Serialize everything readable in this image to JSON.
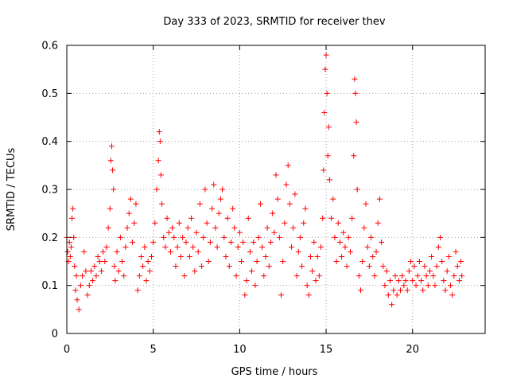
{
  "chart_data": {
    "type": "scatter",
    "title": "Day 333 of 2023, SRMTID for receiver thev",
    "xlabel": "GPS time / hours",
    "ylabel": "SRMTID / TECUs",
    "xlim": [
      0,
      24.2
    ],
    "ylim": [
      0,
      0.6
    ],
    "xticks": [
      0,
      5,
      10,
      15,
      20
    ],
    "xtick_labels": [
      "0",
      "5",
      "10",
      "15",
      "20"
    ],
    "yticks": [
      0,
      0.1,
      0.2,
      0.3,
      0.4,
      0.5,
      0.6
    ],
    "ytick_labels": [
      "0",
      "0.1",
      "0.2",
      "0.3",
      "0.4",
      "0.5",
      "0.6"
    ],
    "grid": true,
    "marker": "plus",
    "color": "#ff0000",
    "series": [
      {
        "name": "SRMTID",
        "points": [
          [
            0.0,
            0.2
          ],
          [
            0.05,
            0.17
          ],
          [
            0.1,
            0.15
          ],
          [
            0.15,
            0.19
          ],
          [
            0.2,
            0.16
          ],
          [
            0.25,
            0.18
          ],
          [
            0.3,
            0.24
          ],
          [
            0.35,
            0.26
          ],
          [
            0.4,
            0.2
          ],
          [
            0.45,
            0.14
          ],
          [
            0.5,
            0.09
          ],
          [
            0.55,
            0.12
          ],
          [
            0.6,
            0.07
          ],
          [
            0.7,
            0.05
          ],
          [
            0.8,
            0.1
          ],
          [
            0.9,
            0.12
          ],
          [
            1.0,
            0.17
          ],
          [
            1.1,
            0.13
          ],
          [
            1.2,
            0.08
          ],
          [
            1.3,
            0.1
          ],
          [
            1.4,
            0.13
          ],
          [
            1.5,
            0.11
          ],
          [
            1.6,
            0.14
          ],
          [
            1.7,
            0.12
          ],
          [
            1.8,
            0.16
          ],
          [
            1.9,
            0.15
          ],
          [
            2.0,
            0.13
          ],
          [
            2.1,
            0.17
          ],
          [
            2.2,
            0.15
          ],
          [
            2.3,
            0.18
          ],
          [
            2.4,
            0.22
          ],
          [
            2.5,
            0.26
          ],
          [
            2.55,
            0.36
          ],
          [
            2.6,
            0.39
          ],
          [
            2.65,
            0.34
          ],
          [
            2.7,
            0.3
          ],
          [
            2.75,
            0.14
          ],
          [
            2.8,
            0.11
          ],
          [
            2.9,
            0.17
          ],
          [
            3.0,
            0.13
          ],
          [
            3.1,
            0.2
          ],
          [
            3.2,
            0.15
          ],
          [
            3.3,
            0.12
          ],
          [
            3.4,
            0.18
          ],
          [
            3.5,
            0.22
          ],
          [
            3.6,
            0.25
          ],
          [
            3.7,
            0.28
          ],
          [
            3.8,
            0.19
          ],
          [
            3.9,
            0.23
          ],
          [
            4.0,
            0.27
          ],
          [
            4.1,
            0.09
          ],
          [
            4.2,
            0.12
          ],
          [
            4.3,
            0.16
          ],
          [
            4.4,
            0.14
          ],
          [
            4.5,
            0.18
          ],
          [
            4.6,
            0.11
          ],
          [
            4.7,
            0.15
          ],
          [
            4.8,
            0.13
          ],
          [
            4.9,
            0.16
          ],
          [
            5.0,
            0.19
          ],
          [
            5.1,
            0.23
          ],
          [
            5.2,
            0.3
          ],
          [
            5.3,
            0.36
          ],
          [
            5.35,
            0.42
          ],
          [
            5.4,
            0.4
          ],
          [
            5.45,
            0.33
          ],
          [
            5.5,
            0.27
          ],
          [
            5.6,
            0.2
          ],
          [
            5.7,
            0.18
          ],
          [
            5.8,
            0.24
          ],
          [
            5.9,
            0.21
          ],
          [
            6.0,
            0.17
          ],
          [
            6.1,
            0.22
          ],
          [
            6.2,
            0.2
          ],
          [
            6.3,
            0.14
          ],
          [
            6.4,
            0.18
          ],
          [
            6.5,
            0.23
          ],
          [
            6.6,
            0.16
          ],
          [
            6.7,
            0.2
          ],
          [
            6.8,
            0.12
          ],
          [
            6.9,
            0.19
          ],
          [
            7.0,
            0.22
          ],
          [
            7.1,
            0.16
          ],
          [
            7.2,
            0.24
          ],
          [
            7.3,
            0.18
          ],
          [
            7.4,
            0.13
          ],
          [
            7.5,
            0.21
          ],
          [
            7.6,
            0.17
          ],
          [
            7.7,
            0.27
          ],
          [
            7.8,
            0.14
          ],
          [
            7.9,
            0.2
          ],
          [
            8.0,
            0.3
          ],
          [
            8.1,
            0.23
          ],
          [
            8.2,
            0.15
          ],
          [
            8.3,
            0.19
          ],
          [
            8.4,
            0.26
          ],
          [
            8.5,
            0.31
          ],
          [
            8.6,
            0.22
          ],
          [
            8.7,
            0.18
          ],
          [
            8.8,
            0.25
          ],
          [
            8.9,
            0.28
          ],
          [
            9.0,
            0.3
          ],
          [
            9.1,
            0.2
          ],
          [
            9.2,
            0.16
          ],
          [
            9.3,
            0.24
          ],
          [
            9.4,
            0.14
          ],
          [
            9.5,
            0.19
          ],
          [
            9.6,
            0.26
          ],
          [
            9.7,
            0.22
          ],
          [
            9.8,
            0.12
          ],
          [
            9.9,
            0.18
          ],
          [
            10.0,
            0.21
          ],
          [
            10.1,
            0.15
          ],
          [
            10.2,
            0.19
          ],
          [
            10.3,
            0.08
          ],
          [
            10.4,
            0.11
          ],
          [
            10.5,
            0.24
          ],
          [
            10.6,
            0.17
          ],
          [
            10.7,
            0.13
          ],
          [
            10.8,
            0.19
          ],
          [
            10.9,
            0.1
          ],
          [
            11.0,
            0.15
          ],
          [
            11.1,
            0.2
          ],
          [
            11.2,
            0.27
          ],
          [
            11.3,
            0.18
          ],
          [
            11.4,
            0.12
          ],
          [
            11.5,
            0.16
          ],
          [
            11.6,
            0.22
          ],
          [
            11.7,
            0.14
          ],
          [
            11.8,
            0.19
          ],
          [
            11.9,
            0.25
          ],
          [
            12.0,
            0.21
          ],
          [
            12.1,
            0.33
          ],
          [
            12.2,
            0.28
          ],
          [
            12.3,
            0.2
          ],
          [
            12.4,
            0.08
          ],
          [
            12.5,
            0.15
          ],
          [
            12.6,
            0.23
          ],
          [
            12.7,
            0.31
          ],
          [
            12.8,
            0.35
          ],
          [
            12.9,
            0.27
          ],
          [
            13.0,
            0.18
          ],
          [
            13.1,
            0.22
          ],
          [
            13.2,
            0.29
          ],
          [
            13.3,
            0.12
          ],
          [
            13.4,
            0.17
          ],
          [
            13.5,
            0.2
          ],
          [
            13.6,
            0.14
          ],
          [
            13.7,
            0.23
          ],
          [
            13.8,
            0.26
          ],
          [
            13.9,
            0.1
          ],
          [
            14.0,
            0.08
          ],
          [
            14.1,
            0.16
          ],
          [
            14.2,
            0.13
          ],
          [
            14.3,
            0.19
          ],
          [
            14.4,
            0.11
          ],
          [
            14.5,
            0.16
          ],
          [
            14.6,
            0.12
          ],
          [
            14.7,
            0.18
          ],
          [
            14.8,
            0.24
          ],
          [
            14.85,
            0.34
          ],
          [
            14.9,
            0.46
          ],
          [
            14.95,
            0.55
          ],
          [
            15.0,
            0.58
          ],
          [
            15.05,
            0.5
          ],
          [
            15.1,
            0.37
          ],
          [
            15.15,
            0.43
          ],
          [
            15.2,
            0.32
          ],
          [
            15.3,
            0.24
          ],
          [
            15.4,
            0.28
          ],
          [
            15.5,
            0.2
          ],
          [
            15.6,
            0.15
          ],
          [
            15.7,
            0.23
          ],
          [
            15.8,
            0.19
          ],
          [
            15.9,
            0.16
          ],
          [
            16.0,
            0.21
          ],
          [
            16.1,
            0.18
          ],
          [
            16.2,
            0.14
          ],
          [
            16.3,
            0.2
          ],
          [
            16.4,
            0.17
          ],
          [
            16.5,
            0.24
          ],
          [
            16.6,
            0.37
          ],
          [
            16.65,
            0.53
          ],
          [
            16.7,
            0.5
          ],
          [
            16.75,
            0.44
          ],
          [
            16.8,
            0.3
          ],
          [
            16.9,
            0.12
          ],
          [
            17.0,
            0.09
          ],
          [
            17.1,
            0.15
          ],
          [
            17.2,
            0.22
          ],
          [
            17.3,
            0.27
          ],
          [
            17.4,
            0.18
          ],
          [
            17.5,
            0.14
          ],
          [
            17.6,
            0.2
          ],
          [
            17.7,
            0.16
          ],
          [
            17.8,
            0.12
          ],
          [
            17.9,
            0.17
          ],
          [
            18.0,
            0.23
          ],
          [
            18.1,
            0.28
          ],
          [
            18.2,
            0.19
          ],
          [
            18.3,
            0.14
          ],
          [
            18.4,
            0.1
          ],
          [
            18.5,
            0.13
          ],
          [
            18.6,
            0.08
          ],
          [
            18.7,
            0.11
          ],
          [
            18.8,
            0.06
          ],
          [
            18.9,
            0.09
          ],
          [
            19.0,
            0.12
          ],
          [
            19.1,
            0.08
          ],
          [
            19.2,
            0.11
          ],
          [
            19.3,
            0.09
          ],
          [
            19.4,
            0.12
          ],
          [
            19.5,
            0.1
          ],
          [
            19.6,
            0.11
          ],
          [
            19.7,
            0.09
          ],
          [
            19.8,
            0.13
          ],
          [
            19.9,
            0.15
          ],
          [
            20.0,
            0.11
          ],
          [
            20.1,
            0.14
          ],
          [
            20.2,
            0.1
          ],
          [
            20.3,
            0.12
          ],
          [
            20.4,
            0.15
          ],
          [
            20.5,
            0.11
          ],
          [
            20.6,
            0.09
          ],
          [
            20.7,
            0.14
          ],
          [
            20.8,
            0.12
          ],
          [
            20.9,
            0.1
          ],
          [
            21.0,
            0.13
          ],
          [
            21.1,
            0.16
          ],
          [
            21.2,
            0.12
          ],
          [
            21.3,
            0.1
          ],
          [
            21.4,
            0.14
          ],
          [
            21.5,
            0.18
          ],
          [
            21.6,
            0.2
          ],
          [
            21.7,
            0.15
          ],
          [
            21.8,
            0.11
          ],
          [
            21.9,
            0.09
          ],
          [
            22.0,
            0.13
          ],
          [
            22.1,
            0.16
          ],
          [
            22.2,
            0.1
          ],
          [
            22.3,
            0.08
          ],
          [
            22.4,
            0.12
          ],
          [
            22.5,
            0.17
          ],
          [
            22.6,
            0.14
          ],
          [
            22.7,
            0.11
          ],
          [
            22.8,
            0.15
          ],
          [
            22.85,
            0.12
          ]
        ]
      }
    ]
  }
}
